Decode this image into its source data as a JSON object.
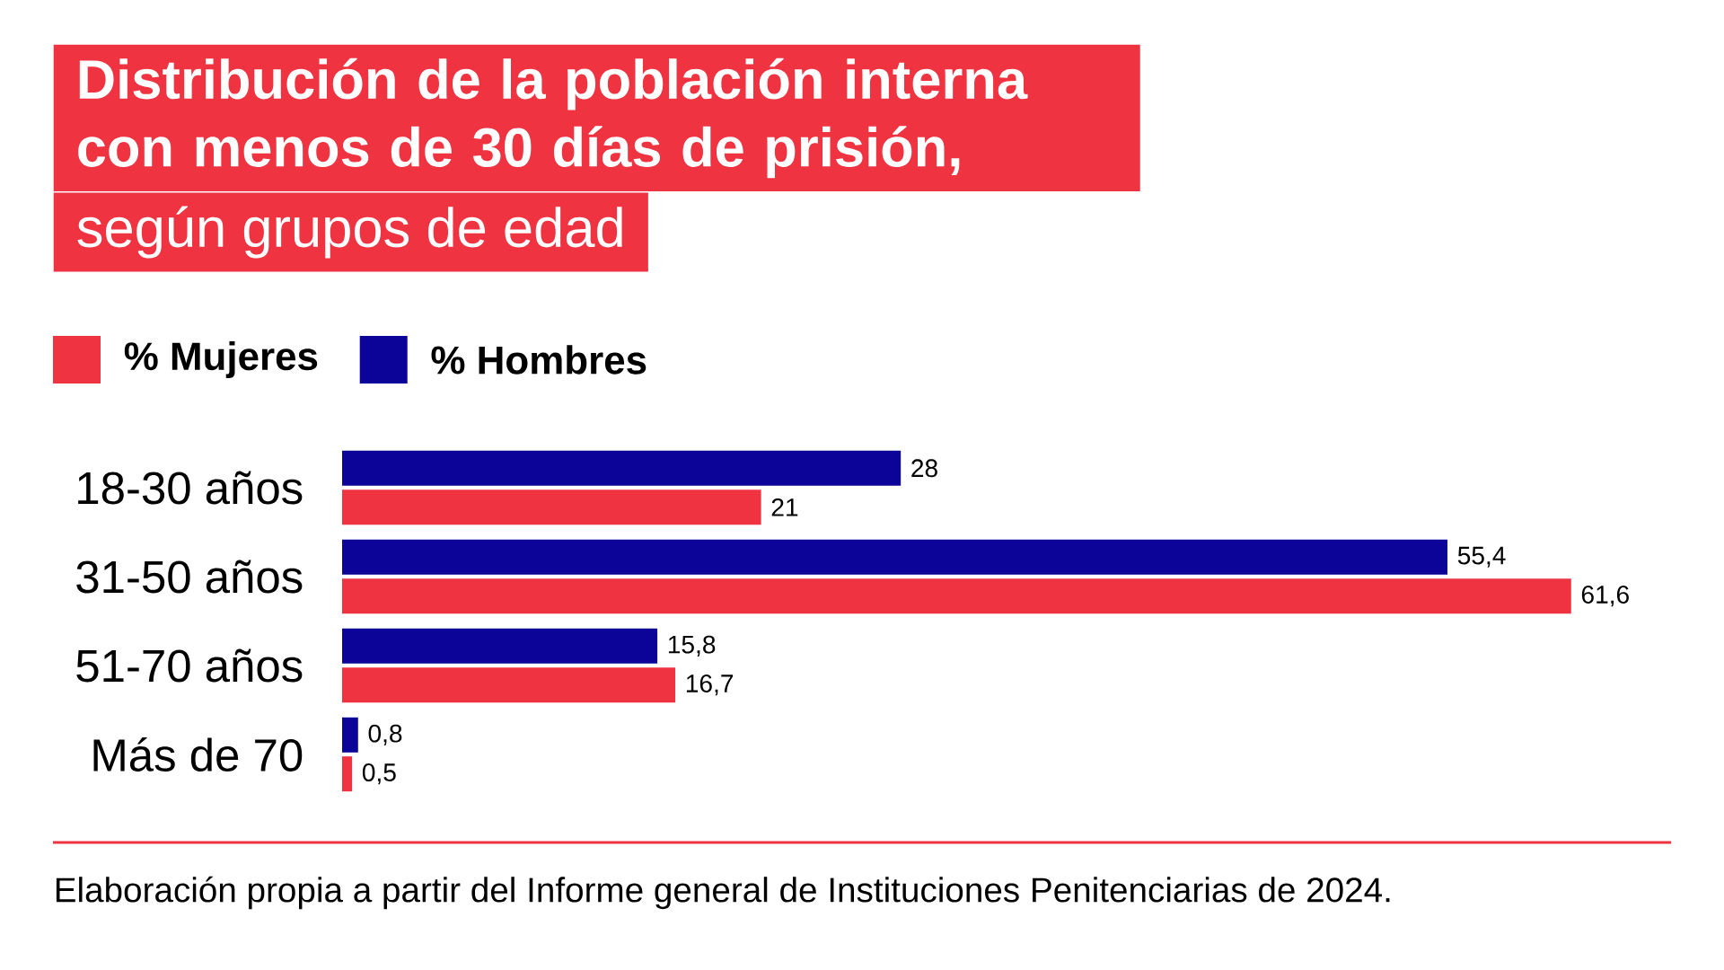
{
  "chart_data": {
    "type": "bar",
    "orientation": "horizontal",
    "title": "Distribución de la población interna con menos de 30 días de prisión,",
    "subtitle": "según grupos de edad",
    "categories": [
      "18-30 años",
      "31-50 años",
      "51-70 años",
      "Más de 70"
    ],
    "series": [
      {
        "name": "% Mujeres",
        "color": "#ef3340",
        "values": [
          21,
          61.6,
          16.7,
          0.5
        ],
        "value_labels": [
          "21",
          "61,6",
          "16,7",
          "0,5"
        ]
      },
      {
        "name": "% Hombres",
        "color": "#0c0499",
        "values": [
          28,
          55.4,
          15.8,
          0.8
        ],
        "value_labels": [
          "28",
          "55,4",
          "15,8",
          "0,8"
        ]
      }
    ],
    "legend": "top left",
    "annotations": [
      "Elaboración propia a partir del Informe general de Instituciones Penitenciarias de 2024."
    ]
  }
}
